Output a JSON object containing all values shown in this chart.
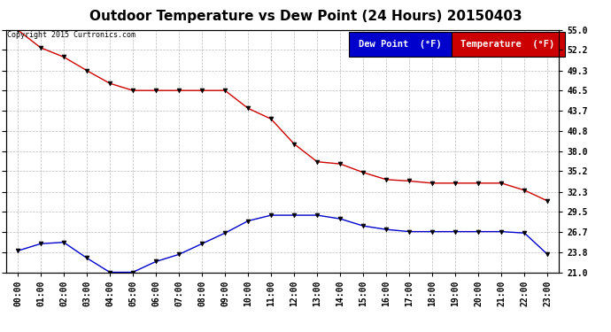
{
  "title": "Outdoor Temperature vs Dew Point (24 Hours) 20150403",
  "copyright": "Copyright 2015 Curtronics.com",
  "hours": [
    "00:00",
    "01:00",
    "02:00",
    "03:00",
    "04:00",
    "05:00",
    "06:00",
    "07:00",
    "08:00",
    "09:00",
    "10:00",
    "11:00",
    "12:00",
    "13:00",
    "14:00",
    "15:00",
    "16:00",
    "17:00",
    "18:00",
    "19:00",
    "20:00",
    "21:00",
    "22:00",
    "23:00"
  ],
  "temperature": [
    55.0,
    52.5,
    51.2,
    49.3,
    47.5,
    46.5,
    46.5,
    46.5,
    46.5,
    46.5,
    44.0,
    42.5,
    39.0,
    36.5,
    36.2,
    35.0,
    34.0,
    33.8,
    33.5,
    33.5,
    33.5,
    33.5,
    32.5,
    31.0
  ],
  "dewpoint": [
    24.0,
    25.0,
    25.2,
    23.0,
    21.0,
    21.0,
    22.5,
    23.5,
    25.0,
    26.5,
    28.2,
    29.0,
    29.0,
    29.0,
    28.5,
    27.5,
    27.0,
    26.7,
    26.7,
    26.7,
    26.7,
    26.7,
    26.5,
    23.5
  ],
  "temp_color": "#cc0000",
  "dew_color": "#0000cc",
  "marker_color": "#000000",
  "bg_color": "#ffffff",
  "grid_color": "#aaaaaa",
  "ylim_min": 21.0,
  "ylim_max": 55.0,
  "yticks": [
    21.0,
    23.8,
    26.7,
    29.5,
    32.3,
    35.2,
    38.0,
    40.8,
    43.7,
    46.5,
    49.3,
    52.2,
    55.0
  ],
  "legend_dew_bg": "#0000cc",
  "legend_temp_bg": "#cc0000",
  "legend_text_color": "#ffffff",
  "title_fontsize": 11,
  "axis_fontsize": 7,
  "legend_fontsize": 7.5,
  "copyright_fontsize": 6
}
